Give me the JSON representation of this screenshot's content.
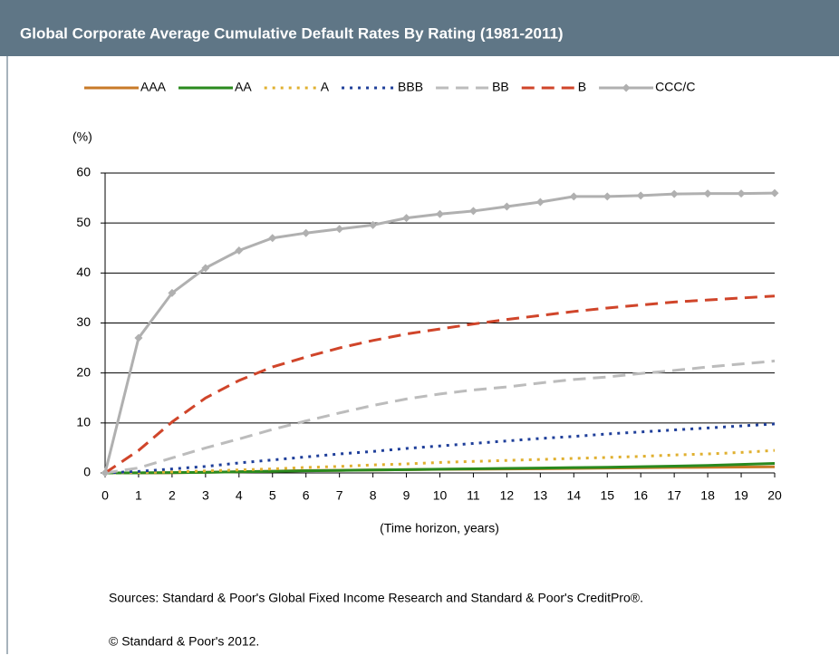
{
  "header": {
    "title": "Global Corporate Average Cumulative Default Rates By Rating (1981-2011)"
  },
  "chart_data": {
    "type": "line",
    "ylabel": "(%)",
    "xlabel": "(Time horizon, years)",
    "x": [
      0,
      1,
      2,
      3,
      4,
      5,
      6,
      7,
      8,
      9,
      10,
      11,
      12,
      13,
      14,
      15,
      16,
      17,
      18,
      19,
      20
    ],
    "xlim": [
      0,
      20
    ],
    "xticks": [
      0,
      1,
      2,
      3,
      4,
      5,
      6,
      7,
      8,
      9,
      10,
      11,
      12,
      13,
      14,
      15,
      16,
      17,
      18,
      19,
      20
    ],
    "ylim": [
      0,
      60
    ],
    "yticks": [
      0,
      10,
      20,
      30,
      40,
      50,
      60
    ],
    "grid": true,
    "legend": "top",
    "series": [
      {
        "name": "AAA",
        "color": "#c87a28",
        "dash": "solid",
        "values": [
          0,
          0,
          0.03,
          0.13,
          0.24,
          0.35,
          0.47,
          0.53,
          0.6,
          0.66,
          0.72,
          0.75,
          0.79,
          0.83,
          0.9,
          0.97,
          1.04,
          1.1,
          1.14,
          1.18,
          1.22
        ]
      },
      {
        "name": "AA",
        "color": "#2a8a1e",
        "dash": "solid",
        "values": [
          0,
          0.02,
          0.07,
          0.12,
          0.22,
          0.32,
          0.42,
          0.5,
          0.58,
          0.66,
          0.74,
          0.82,
          0.9,
          0.98,
          1.06,
          1.14,
          1.24,
          1.36,
          1.5,
          1.7,
          1.9
        ]
      },
      {
        "name": "A",
        "color": "#e0b030",
        "dash": "dotted",
        "values": [
          0,
          0.1,
          0.2,
          0.4,
          0.6,
          0.8,
          1.1,
          1.3,
          1.6,
          1.8,
          2.1,
          2.3,
          2.5,
          2.7,
          2.9,
          3.1,
          3.3,
          3.6,
          3.8,
          4.1,
          4.5
        ]
      },
      {
        "name": "BBB",
        "color": "#1f3f9a",
        "dash": "dotted",
        "values": [
          0,
          0.3,
          0.8,
          1.3,
          2,
          2.6,
          3.2,
          3.8,
          4.3,
          4.9,
          5.4,
          5.9,
          6.4,
          6.9,
          7.3,
          7.8,
          8.2,
          8.6,
          9,
          9.4,
          9.8
        ]
      },
      {
        "name": "BB",
        "color": "#bcbcbc",
        "dash": "dashed",
        "values": [
          0,
          1,
          3,
          5,
          6.8,
          8.7,
          10.4,
          12,
          13.5,
          14.8,
          15.8,
          16.6,
          17.2,
          18,
          18.7,
          19.2,
          19.9,
          20.5,
          21.2,
          21.8,
          22.4
        ]
      },
      {
        "name": "B",
        "color": "#d0452a",
        "dash": "dashed",
        "values": [
          0,
          4.5,
          10.2,
          15,
          18.5,
          21.2,
          23.2,
          25,
          26.5,
          27.8,
          28.8,
          29.8,
          30.7,
          31.5,
          32.3,
          33,
          33.6,
          34.2,
          34.6,
          35,
          35.4
        ]
      },
      {
        "name": "CCC/C",
        "color": "#b0b0b0",
        "dash": "solid",
        "marker": "diamond",
        "values": [
          0,
          27,
          36,
          41,
          44.5,
          47,
          48,
          48.8,
          49.6,
          51,
          51.8,
          52.4,
          53.3,
          54.2,
          55.3,
          55.3,
          55.5,
          55.8,
          55.9,
          55.9,
          56
        ]
      }
    ]
  },
  "footer": {
    "sources": "Sources: Standard & Poor's Global Fixed Income Research and Standard & Poor's CreditPro®.",
    "copyright": "© Standard & Poor's 2012."
  }
}
